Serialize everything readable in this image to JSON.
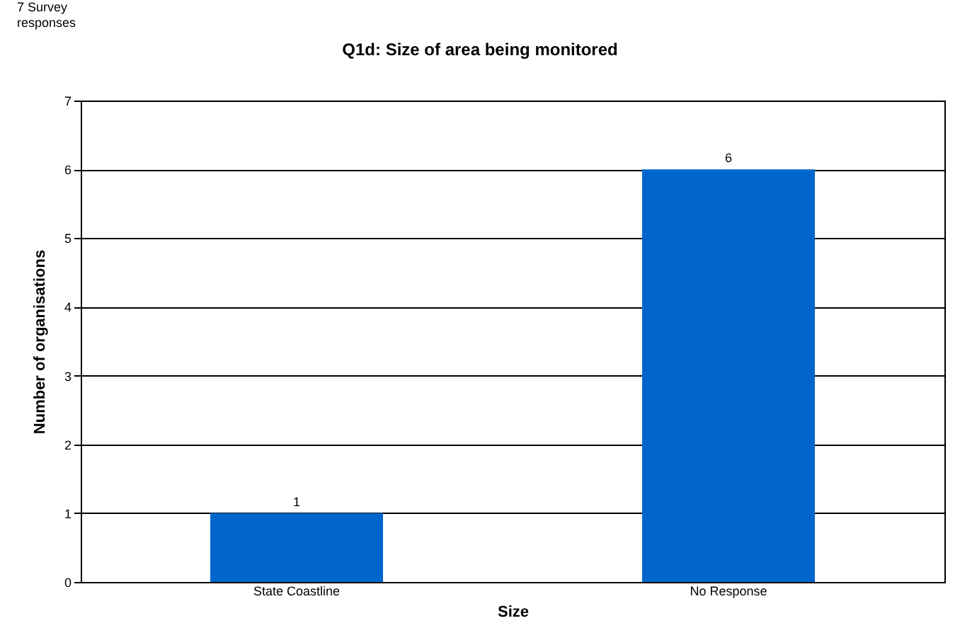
{
  "chart_data": {
    "type": "bar",
    "title": "Q1d: Size of area being monitored",
    "xlabel": "Size",
    "ylabel": "Number of organisations",
    "annotations": [
      "7 Survey responses"
    ],
    "categories": [
      "State Coastline",
      "No Response"
    ],
    "values": [
      1,
      6
    ],
    "color": "#0066cc",
    "ylim": [
      0,
      7
    ],
    "yticks": [
      0,
      1,
      2,
      3,
      4,
      5,
      6,
      7
    ],
    "grid": "y",
    "data_labels": true
  }
}
